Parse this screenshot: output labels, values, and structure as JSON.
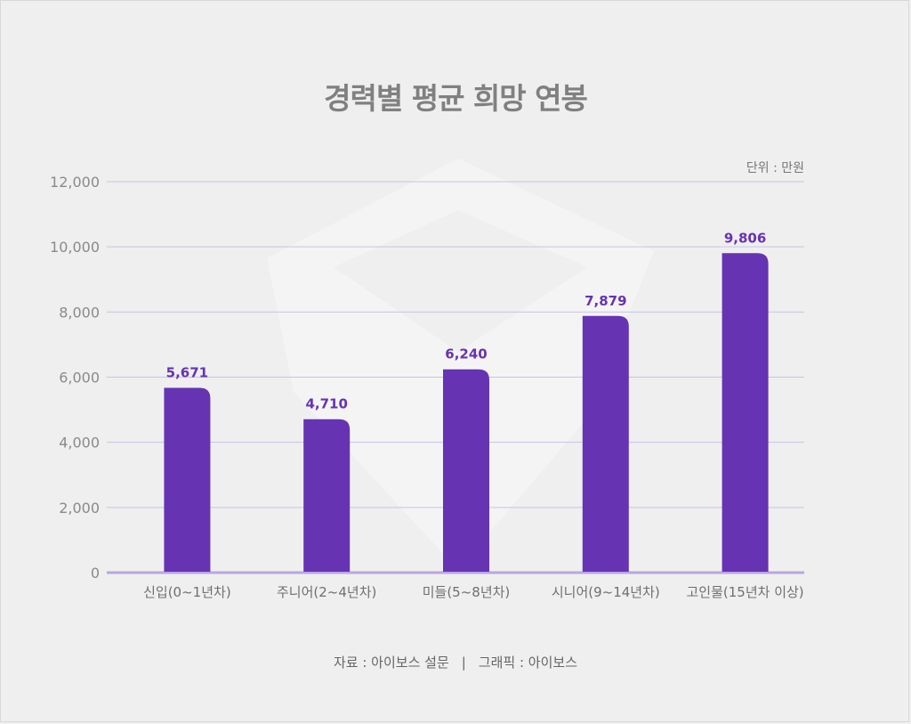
{
  "title": "경력별 평균 희망 연봉",
  "unit": "단위 : 만원",
  "footer": {
    "source": "자료 : 아이보스 설문",
    "separator": "|",
    "graphic": "그래픽 : 아이보스"
  },
  "colors": {
    "bar": "#6633b3",
    "grid": "#c7c3e6",
    "baseline": "#b8a6e0",
    "background": "#efefef"
  },
  "chart_data": {
    "type": "bar",
    "title": "경력별 평균 희망 연봉",
    "unit": "단위 : 만원",
    "categories": [
      "신입(0~1년차)",
      "주니어(2~4년차)",
      "미들(5~8년차)",
      "시니어(9~14년차)",
      "고인물(15년차 이상)"
    ],
    "values": [
      5671,
      4710,
      6240,
      7879,
      9806
    ],
    "value_labels": [
      "5,671",
      "4,710",
      "6,240",
      "7,879",
      "9,806"
    ],
    "ylim": [
      0,
      12000
    ],
    "yticks": [
      0,
      2000,
      4000,
      6000,
      8000,
      10000,
      12000
    ],
    "ytick_labels": [
      "0",
      "2,000",
      "4,000",
      "6,000",
      "8,000",
      "10,000",
      "12,000"
    ],
    "grid": true
  }
}
